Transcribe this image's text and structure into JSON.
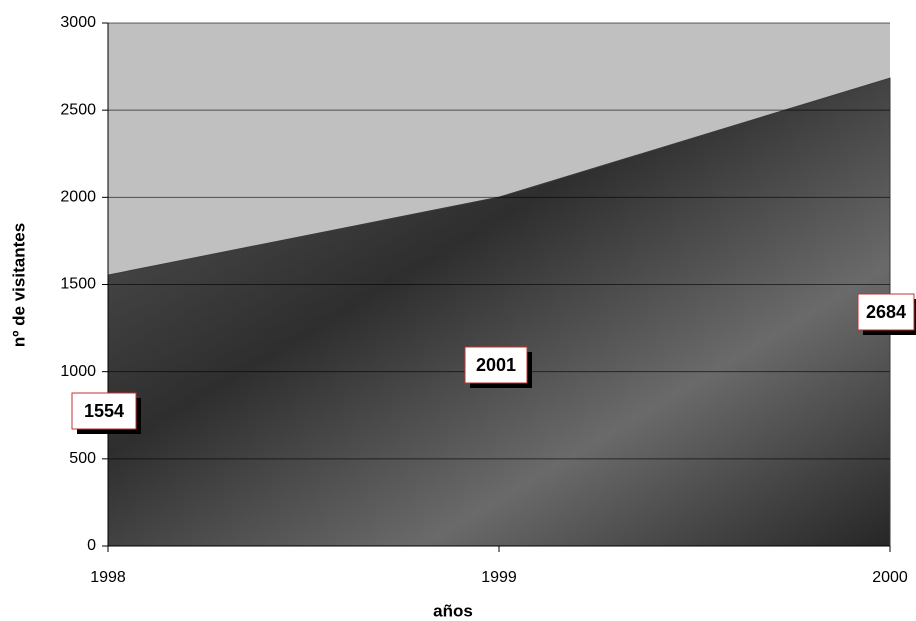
{
  "chart_data": {
    "type": "area",
    "x": [
      1998,
      1999,
      2000
    ],
    "values": [
      1554,
      2001,
      2684
    ],
    "xlabel": "años",
    "ylabel": "nº de visitantes",
    "xlim": [
      1998,
      2000
    ],
    "xticks": [
      1998,
      1999,
      2000
    ],
    "ylim": [
      0,
      3000
    ],
    "yticks": [
      0,
      500,
      1000,
      1500,
      2000,
      2500,
      3000
    ],
    "grid": true,
    "color": "#3a3a3a",
    "background": "#c0c0c0"
  }
}
